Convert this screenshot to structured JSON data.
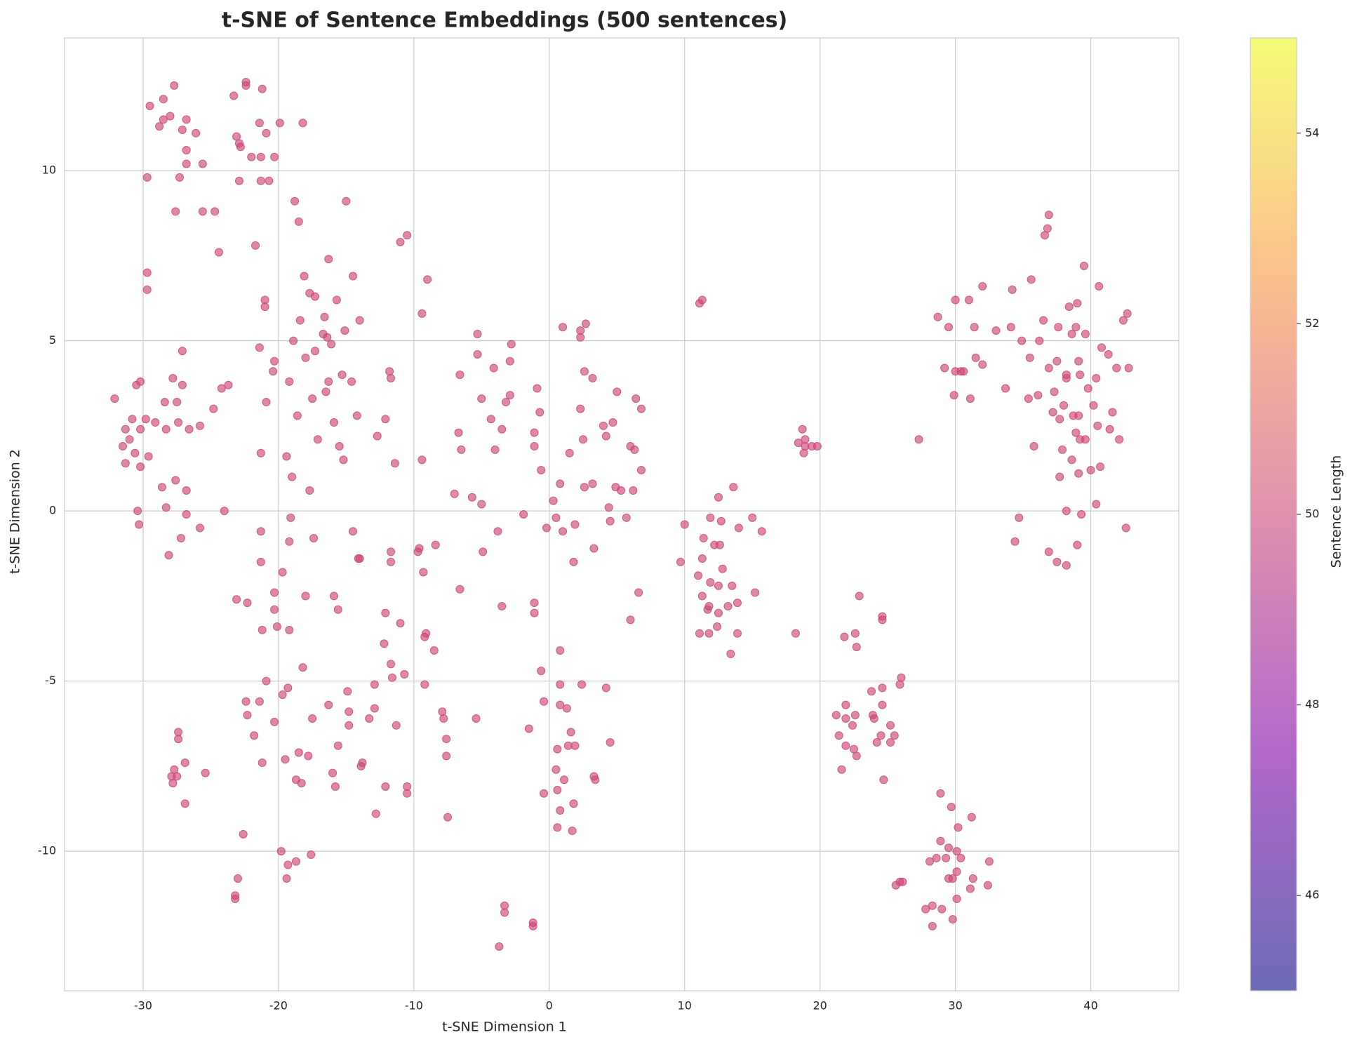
{
  "chart_data": {
    "type": "scatter",
    "title": "t-SNE of Sentence Embeddings (500 sentences)",
    "x_label": "t-SNE Dimension 1",
    "y_label": "t-SNE Dimension 2",
    "colorbar_label": "Sentence Length",
    "color": "#cc4778",
    "colormap": "plasma",
    "grid": true,
    "xlim": [
      -35.8,
      46.5
    ],
    "ylim": [
      -14.1,
      13.9
    ],
    "xticks": [
      -30,
      -20,
      -10,
      0,
      10,
      20,
      30,
      40
    ],
    "yticks": [
      -10,
      -5,
      0,
      5,
      10
    ],
    "clim": [
      45,
      55
    ],
    "cticks": [
      46,
      48,
      50,
      52,
      54
    ],
    "x": [
      -29.5,
      -28.5,
      -27.7,
      -28.8,
      -28.5,
      -28.0,
      -26.8,
      -27.1,
      -26.1,
      -26.8,
      -26.8,
      -25.6,
      -29.7,
      -27.3,
      -27.6,
      -25.6,
      -24.7,
      -24.4,
      -23.3,
      -22.4,
      -22.4,
      -21.2,
      -23.1,
      -22.9,
      -22.8,
      -21.4,
      -20.9,
      -19.9,
      -18.2,
      -22.0,
      -21.3,
      -20.3,
      -22.9,
      -21.3,
      -20.7,
      -18.8,
      -18.5,
      -21.7,
      -15.0,
      -32.1,
      -30.2,
      -30.5,
      -29.7,
      -29.7,
      -27.1,
      -27.8,
      -27.1,
      -27.5,
      -28.4,
      -30.8,
      -29.8,
      -30.2,
      -31.3,
      -31.0,
      -31.5,
      -30.6,
      -29.6,
      -31.3,
      -30.2,
      -29.1,
      -28.3,
      -27.4,
      -26.6,
      -25.8,
      -24.8,
      -24.2,
      -23.7,
      -28.6,
      -27.6,
      -26.8,
      -30.4,
      -28.3,
      -26.8,
      -24.0,
      -30.3,
      -25.8,
      -27.2,
      -28.1,
      -27.4,
      -27.4,
      -26.9,
      -27.7,
      -27.5,
      -27.9,
      -27.8,
      -25.4,
      -26.9,
      -18.1,
      -16.3,
      -14.5,
      -17.7,
      -17.3,
      -15.7,
      -21.0,
      -21.0,
      -18.4,
      -14.0,
      -16.6,
      -15.1,
      -16.7,
      -16.4,
      -18.9,
      -21.4,
      -16.1,
      -17.3,
      -20.3,
      -18.0,
      -20.4,
      -15.3,
      -16.3,
      -14.6,
      -19.2,
      -16.5,
      -17.5,
      -20.9,
      -14.2,
      -18.6,
      -15.9,
      -17.1,
      -15.5,
      -21.3,
      -19.4,
      -15.2,
      -19.0,
      -17.7,
      -19.1,
      -21.3,
      -14.5,
      -19.2,
      -17.4,
      -14.0,
      -14.1,
      -21.3,
      -19.7,
      -20.3,
      -18.0,
      -15.9,
      -23.1,
      -22.3,
      -20.3,
      -15.6,
      -21.2,
      -20.1,
      -19.2,
      -18.2,
      -20.9,
      -19.3,
      -19.7,
      -14.9,
      -22.4,
      -21.4,
      -16.3,
      -22.3,
      -14.8,
      -17.5,
      -20.3,
      -14.8,
      -21.8,
      -15.6,
      -18.5,
      -17.8,
      -19.5,
      -21.2,
      -16.0,
      -18.7,
      -18.3,
      -15.8,
      -22.6,
      -19.8,
      -17.6,
      -18.7,
      -19.3,
      -19.4,
      -23.0,
      -23.2,
      -23.2,
      -10.5,
      -11.0,
      -9.0,
      -9.4,
      -11.8,
      -11.7,
      -12.1,
      -12.7,
      -11.4,
      -9.4,
      -11.7,
      -11.7,
      -9.6,
      -9.7,
      -8.4,
      -9.3,
      -12.1,
      -11.0,
      -9.1,
      -9.2,
      -12.2,
      -8.5,
      -11.7,
      -10.7,
      -11.6,
      -12.9,
      -9.2,
      -12.9,
      -13.3,
      -11.3,
      -13.8,
      -13.9,
      -12.1,
      -10.5,
      -10.5,
      -12.8,
      -7.9,
      -7.8,
      -7.6,
      -7.6,
      -7.5,
      -5.4,
      -5.3,
      -2.8,
      -5.3,
      -4.1,
      -2.9,
      -6.6,
      -0.9,
      -5.0,
      -2.9,
      -3.2,
      -0.7,
      -4.3,
      -3.5,
      -1.1,
      -6.7,
      -6.5,
      -4.0,
      -1.1,
      -0.6,
      -7.0,
      -5.7,
      -5.0,
      0.3,
      0.8,
      -1.9,
      -3.8,
      -0.2,
      0.5,
      1.0,
      1.9,
      -4.9,
      1.8,
      3.3,
      -6.6,
      -3.5,
      -1.1,
      -1.1,
      1.0,
      2.7,
      2.3,
      2.3,
      2.6,
      3.2,
      5.0,
      6.4,
      6.8,
      2.3,
      4.0,
      4.7,
      4.2,
      2.5,
      1.5,
      6.0,
      6.3,
      6.8,
      2.6,
      3.2,
      4.9,
      5.3,
      6.2,
      4.4,
      4.5,
      5.7,
      6.6,
      6.0,
      0.8,
      -0.6,
      0.8,
      2.4,
      4.2,
      -0.4,
      0.8,
      1.3,
      -1.5,
      1.6,
      4.5,
      0.6,
      1.4,
      1.9,
      0.5,
      1.1,
      3.3,
      3.4,
      0.6,
      -0.4,
      1.8,
      0.8,
      0.6,
      1.7,
      -3.3,
      -3.3,
      -1.2,
      -1.2,
      -3.7,
      11.3,
      11.1,
      10.0,
      9.7,
      12.5,
      13.6,
      11.9,
      12.7,
      15.0,
      14.0,
      15.7,
      11.4,
      12.2,
      12.6,
      11.3,
      12.8,
      11.0,
      11.9,
      12.5,
      13.5,
      15.2,
      11.3,
      11.8,
      11.7,
      13.2,
      13.9,
      12.5,
      12.4,
      11.1,
      11.8,
      13.9,
      13.4,
      18.7,
      18.9,
      18.4,
      18.9,
      19.4,
      19.8,
      18.8,
      18.2,
      27.3,
      22.9,
      24.6,
      24.6,
      21.8,
      22.6,
      22.7,
      26.0,
      25.9,
      24.6,
      23.8,
      21.9,
      24.6,
      21.2,
      21.9,
      22.6,
      23.9,
      24.0,
      22.4,
      25.2,
      21.4,
      24.5,
      25.5,
      21.9,
      24.2,
      25.2,
      22.5,
      22.7,
      21.6,
      24.7,
      28.9,
      29.7,
      31.2,
      30.2,
      28.9,
      29.5,
      30.1,
      30.4,
      29.3,
      28.1,
      28.6,
      32.5,
      30.1,
      29.5,
      29.8,
      31.3,
      26.1,
      25.6,
      25.9,
      32.4,
      31.1,
      30.1,
      27.8,
      28.3,
      29.0,
      29.8,
      28.3,
      36.9,
      36.8,
      36.6,
      39.5,
      35.6,
      32.0,
      34.2,
      40.6,
      30.0,
      31.0,
      39.0,
      38.4,
      28.7,
      36.5,
      42.7,
      42.4,
      29.5,
      31.4,
      33.0,
      34.1,
      37.6,
      38.9,
      34.9,
      36.2,
      38.6,
      39.6,
      40.8,
      41.3,
      31.5,
      35.5,
      37.5,
      39.1,
      29.2,
      30.0,
      30.4,
      30.6,
      32.0,
      36.9,
      41.9,
      42.8,
      38.2,
      39.2,
      40.4,
      38.2,
      33.7,
      39.8,
      29.9,
      36.1,
      37.3,
      31.1,
      35.4,
      38.0,
      40.2,
      41.6,
      37.2,
      38.7,
      37.7,
      39.1,
      40.5,
      41.4,
      38.9,
      39.2,
      39.6,
      42.1,
      35.8,
      37.9,
      38.6,
      40.7,
      40.0,
      39.1,
      37.7,
      38.2,
      40.4,
      34.7,
      39.3,
      42.6,
      34.4,
      36.9,
      39.0,
      37.5,
      38.2
    ],
    "y": [
      11.9,
      12.1,
      12.5,
      11.3,
      11.5,
      11.6,
      11.5,
      11.2,
      11.1,
      10.6,
      10.2,
      10.2,
      9.8,
      9.8,
      8.8,
      8.8,
      8.8,
      7.6,
      12.2,
      12.6,
      12.5,
      12.4,
      11.0,
      10.8,
      10.7,
      11.4,
      11.1,
      11.4,
      11.4,
      10.4,
      10.4,
      10.4,
      9.7,
      9.7,
      9.7,
      9.1,
      8.5,
      7.8,
      9.1,
      3.3,
      3.8,
      3.7,
      7.0,
      6.5,
      4.7,
      3.9,
      3.7,
      3.2,
      3.2,
      2.7,
      2.7,
      2.4,
      2.4,
      2.1,
      1.9,
      1.7,
      1.6,
      1.4,
      1.3,
      2.6,
      2.4,
      2.6,
      2.4,
      2.5,
      3.0,
      3.6,
      3.7,
      0.7,
      0.9,
      0.6,
      0.0,
      0.1,
      -0.1,
      0.0,
      -0.4,
      -0.5,
      -0.8,
      -1.3,
      -6.5,
      -6.7,
      -7.4,
      -7.6,
      -7.8,
      -7.8,
      -8.0,
      -7.7,
      -8.6,
      6.9,
      7.4,
      6.9,
      6.4,
      6.3,
      6.2,
      6.2,
      6.0,
      5.6,
      5.6,
      5.7,
      5.3,
      5.2,
      5.1,
      5.0,
      4.8,
      4.9,
      4.7,
      4.4,
      4.5,
      4.1,
      4.0,
      3.8,
      3.8,
      3.8,
      3.5,
      3.3,
      3.2,
      2.8,
      2.8,
      2.6,
      2.1,
      1.9,
      1.7,
      1.6,
      1.5,
      1.0,
      0.6,
      -0.2,
      -0.6,
      -0.6,
      -0.9,
      -0.8,
      -1.4,
      -1.4,
      -1.5,
      -1.8,
      -2.4,
      -2.5,
      -2.5,
      -2.6,
      -2.7,
      -2.9,
      -2.9,
      -3.5,
      -3.4,
      -3.5,
      -4.6,
      -5.0,
      -5.2,
      -5.4,
      -5.3,
      -5.6,
      -5.6,
      -5.7,
      -6.0,
      -5.9,
      -6.1,
      -6.2,
      -6.3,
      -6.6,
      -6.9,
      -7.1,
      -7.2,
      -7.3,
      -7.4,
      -7.7,
      -7.9,
      -8.0,
      -8.1,
      -9.5,
      -10.0,
      -10.1,
      -10.3,
      -10.4,
      -10.8,
      -10.8,
      -11.3,
      -11.4,
      8.1,
      7.9,
      6.8,
      5.8,
      4.1,
      3.9,
      2.7,
      2.2,
      1.4,
      1.5,
      -1.2,
      -1.5,
      -1.1,
      -1.2,
      -1.0,
      -1.8,
      -3.0,
      -3.3,
      -3.6,
      -3.7,
      -3.9,
      -4.1,
      -4.5,
      -4.8,
      -4.9,
      -5.1,
      -5.1,
      -5.8,
      -6.1,
      -6.3,
      -7.4,
      -7.5,
      -8.1,
      -8.1,
      -8.3,
      -8.9,
      -5.9,
      -6.1,
      -6.7,
      -7.2,
      -9.0,
      -6.1,
      5.2,
      4.9,
      4.6,
      4.2,
      4.4,
      4.0,
      3.6,
      3.3,
      3.4,
      3.2,
      2.9,
      2.7,
      2.4,
      2.3,
      2.3,
      1.8,
      1.8,
      1.9,
      1.2,
      0.5,
      0.4,
      0.2,
      0.3,
      0.8,
      -0.1,
      -0.6,
      -0.5,
      -0.2,
      -0.6,
      -0.4,
      -1.2,
      -1.5,
      -1.1,
      -2.3,
      -2.8,
      -2.7,
      -3.0,
      5.4,
      5.5,
      5.3,
      5.1,
      4.1,
      3.9,
      3.5,
      3.3,
      3.0,
      3.0,
      2.5,
      2.6,
      2.2,
      2.1,
      1.7,
      1.9,
      1.8,
      1.2,
      0.7,
      0.8,
      0.7,
      0.6,
      0.6,
      0.1,
      -0.3,
      -0.2,
      -2.4,
      -3.2,
      -4.1,
      -4.7,
      -5.1,
      -5.1,
      -5.2,
      -5.6,
      -5.7,
      -5.8,
      -6.4,
      -6.5,
      -6.8,
      -7.0,
      -6.9,
      -6.9,
      -7.6,
      -7.9,
      -7.8,
      -7.9,
      -8.2,
      -8.3,
      -8.6,
      -8.8,
      -9.3,
      -9.4,
      -11.6,
      -11.8,
      -12.1,
      -12.2,
      -12.8,
      6.2,
      6.1,
      -0.4,
      -1.5,
      0.4,
      0.7,
      -0.2,
      -0.3,
      -0.2,
      -0.5,
      -0.6,
      -0.8,
      -1.0,
      -1.0,
      -1.4,
      -1.7,
      -1.9,
      -2.1,
      -2.2,
      -2.2,
      -2.4,
      -2.5,
      -2.8,
      -2.9,
      -2.8,
      -2.7,
      -3.0,
      -3.4,
      -3.6,
      -3.6,
      -3.6,
      -4.2,
      2.4,
      2.1,
      2.0,
      1.9,
      1.9,
      1.9,
      1.7,
      -3.6,
      2.1,
      -2.5,
      -3.1,
      -3.2,
      -3.7,
      -3.6,
      -4.0,
      -4.9,
      -5.1,
      -5.2,
      -5.3,
      -5.7,
      -5.7,
      -6.0,
      -6.1,
      -6.0,
      -6.0,
      -6.1,
      -6.3,
      -6.3,
      -6.6,
      -6.6,
      -6.6,
      -6.9,
      -6.8,
      -6.8,
      -7.0,
      -7.2,
      -7.6,
      -7.9,
      -8.3,
      -8.7,
      -9.0,
      -9.3,
      -9.7,
      -9.9,
      -10.0,
      -10.2,
      -10.2,
      -10.3,
      -10.2,
      -10.3,
      -10.6,
      -10.8,
      -10.8,
      -10.8,
      -10.9,
      -11.0,
      -10.9,
      -11.0,
      -11.1,
      -11.4,
      -11.7,
      -11.6,
      -11.7,
      -12.0,
      -12.2,
      8.7,
      8.3,
      8.1,
      7.2,
      6.8,
      6.6,
      6.5,
      6.6,
      6.2,
      6.2,
      6.1,
      6.0,
      5.7,
      5.6,
      5.8,
      5.6,
      5.4,
      5.4,
      5.3,
      5.4,
      5.4,
      5.4,
      5.0,
      5.0,
      5.2,
      5.2,
      4.8,
      4.6,
      4.5,
      4.5,
      4.4,
      4.4,
      4.2,
      4.1,
      4.1,
      4.1,
      4.3,
      4.2,
      4.2,
      4.2,
      4.0,
      4.0,
      3.9,
      3.9,
      3.6,
      3.6,
      3.4,
      3.4,
      3.5,
      3.3,
      3.3,
      3.1,
      3.1,
      2.9,
      2.9,
      2.8,
      2.7,
      2.8,
      2.5,
      2.4,
      2.3,
      2.1,
      2.1,
      2.1,
      1.9,
      1.8,
      1.5,
      1.3,
      1.2,
      1.1,
      1.0,
      0.0,
      0.2,
      -0.2,
      -0.1,
      -0.5,
      -0.9,
      -1.2,
      -1.0,
      -1.5,
      -1.6
    ]
  }
}
